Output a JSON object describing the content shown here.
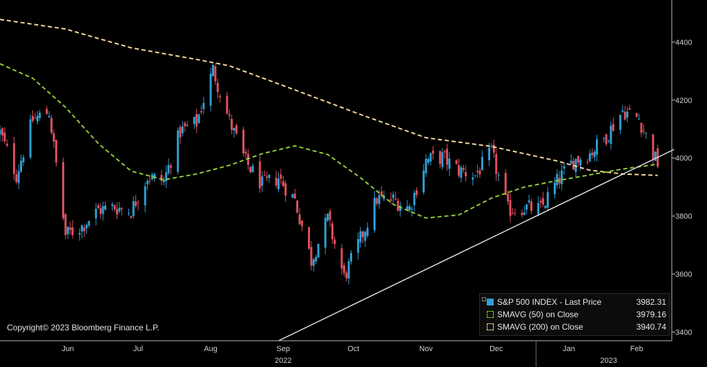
{
  "chart_data": {
    "type": "line",
    "title": "",
    "xlabel": "",
    "ylabel": "",
    "ylim": [
      3370,
      4545
    ],
    "y_ticks": [
      3400,
      3600,
      3800,
      4000,
      4200,
      4400
    ],
    "x_range": [
      "2022-05-17",
      "2023-02-28"
    ],
    "month_ticks": [
      {
        "label": "Jun",
        "date": "2022-06-15"
      },
      {
        "label": "Jul",
        "date": "2022-07-15"
      },
      {
        "label": "Aug",
        "date": "2022-08-15"
      },
      {
        "label": "Sep",
        "date": "2022-09-15"
      },
      {
        "label": "Oct",
        "date": "2022-10-15"
      },
      {
        "label": "Nov",
        "date": "2022-11-15"
      },
      {
        "label": "Dec",
        "date": "2022-12-15"
      },
      {
        "label": "Jan",
        "date": "2023-01-15"
      },
      {
        "label": "Feb",
        "date": "2023-02-13"
      }
    ],
    "year_labels": [
      {
        "label": "2022",
        "date": "2022-09-15"
      },
      {
        "label": "2023",
        "date": "2023-02-01"
      }
    ],
    "year_divider_date": "2023-01-01",
    "grid": false,
    "legend_position": "bottom-right",
    "candles": {
      "name": "S&P 500 INDEX - Last Price",
      "last_value": "3982.31",
      "up_color": "#2f9fd3",
      "down_color": "#e0505e",
      "closes": [
        [
          "2022-05-17",
          4088
        ],
        [
          "2022-05-24",
          3941
        ],
        [
          "2022-05-31",
          4132
        ],
        [
          "2022-06-07",
          4160
        ],
        [
          "2022-06-14",
          3735
        ],
        [
          "2022-06-21",
          3764
        ],
        [
          "2022-06-28",
          3821
        ],
        [
          "2022-07-05",
          3831
        ],
        [
          "2022-07-12",
          3818
        ],
        [
          "2022-07-19",
          3936
        ],
        [
          "2022-07-26",
          3921
        ],
        [
          "2022-08-02",
          4091
        ],
        [
          "2022-08-09",
          4122
        ],
        [
          "2022-08-16",
          4305
        ],
        [
          "2022-08-23",
          4128
        ],
        [
          "2022-08-30",
          3986
        ],
        [
          "2022-09-06",
          3908
        ],
        [
          "2022-09-13",
          3932
        ],
        [
          "2022-09-20",
          3855
        ],
        [
          "2022-09-27",
          3647
        ],
        [
          "2022-10-04",
          3790
        ],
        [
          "2022-10-11",
          3588
        ],
        [
          "2022-10-18",
          3720
        ],
        [
          "2022-10-25",
          3859
        ],
        [
          "2022-11-01",
          3856
        ],
        [
          "2022-11-08",
          3828
        ],
        [
          "2022-11-15",
          3992
        ],
        [
          "2022-11-22",
          4003
        ],
        [
          "2022-11-29",
          3958
        ],
        [
          "2022-12-06",
          3941
        ],
        [
          "2022-12-13",
          4019
        ],
        [
          "2022-12-20",
          3821
        ],
        [
          "2022-12-27",
          3829
        ],
        [
          "2023-01-03",
          3824
        ],
        [
          "2023-01-10",
          3919
        ],
        [
          "2023-01-17",
          3990
        ],
        [
          "2023-01-24",
          4016
        ],
        [
          "2023-01-31",
          4076
        ],
        [
          "2023-02-07",
          4164
        ],
        [
          "2023-02-14",
          4136
        ],
        [
          "2023-02-21",
          3997
        ],
        [
          "2023-02-22",
          3982
        ]
      ]
    },
    "series": [
      {
        "name": "SMAVG (50)  on Close",
        "last_value": "3979.16",
        "color": "#8fcc3a",
        "points": [
          [
            "2022-05-17",
            4325
          ],
          [
            "2022-05-31",
            4275
          ],
          [
            "2022-06-14",
            4175
          ],
          [
            "2022-06-28",
            4050
          ],
          [
            "2022-07-12",
            3955
          ],
          [
            "2022-07-26",
            3925
          ],
          [
            "2022-08-09",
            3945
          ],
          [
            "2022-08-23",
            3975
          ],
          [
            "2022-09-06",
            4015
          ],
          [
            "2022-09-20",
            4042
          ],
          [
            "2022-10-04",
            4012
          ],
          [
            "2022-10-18",
            3932
          ],
          [
            "2022-11-01",
            3840
          ],
          [
            "2022-11-15",
            3793
          ],
          [
            "2022-11-29",
            3804
          ],
          [
            "2022-12-13",
            3862
          ],
          [
            "2022-12-27",
            3900
          ],
          [
            "2023-01-10",
            3922
          ],
          [
            "2023-01-24",
            3942
          ],
          [
            "2023-02-07",
            3962
          ],
          [
            "2023-02-22",
            3979
          ]
        ]
      },
      {
        "name": "SMAVG (200)  on Close",
        "last_value": "3940.74",
        "color": "#f4d79b",
        "points": [
          [
            "2022-05-17",
            4478
          ],
          [
            "2022-06-14",
            4445
          ],
          [
            "2022-07-12",
            4380
          ],
          [
            "2022-08-09",
            4340
          ],
          [
            "2022-08-23",
            4318
          ],
          [
            "2022-09-20",
            4235
          ],
          [
            "2022-10-18",
            4150
          ],
          [
            "2022-11-15",
            4070
          ],
          [
            "2022-12-13",
            4040
          ],
          [
            "2023-01-10",
            3990
          ],
          [
            "2023-01-24",
            3958
          ],
          [
            "2023-02-07",
            3945
          ],
          [
            "2023-02-22",
            3940
          ]
        ]
      }
    ],
    "trendline": {
      "from": [
        "2022-09-13",
        3370
      ],
      "to": [
        "2023-03-01",
        4030
      ],
      "color": "#e8e8e8"
    }
  },
  "footer": {
    "copyright": "Copyright© 2023 Bloomberg Finance L.P."
  },
  "legend": {
    "items": [
      {
        "label": "S&P 500 INDEX - Last Price",
        "value": "3982.31",
        "swatch": "filled",
        "color": "#2f9fd3"
      },
      {
        "label": "SMAVG (50)  on Close",
        "value": "3979.16",
        "swatch": "dashed",
        "color": "#8fcc3a"
      },
      {
        "label": "SMAVG (200)  on Close",
        "value": "3940.74",
        "swatch": "dashed",
        "color": "#f4d79b"
      }
    ]
  }
}
